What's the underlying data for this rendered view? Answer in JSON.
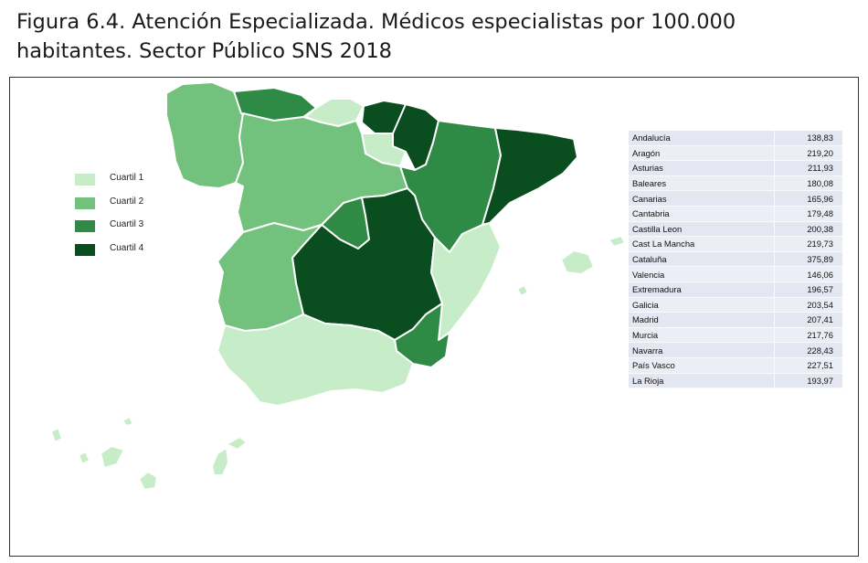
{
  "title": "Figura 6.4. Atención Especializada. Médicos especialistas por 100.000 habitantes. Sector Público SNS 2018",
  "colors": {
    "q1": "#c7ecc8",
    "q2": "#72c27d",
    "q3": "#2f8a46",
    "q4": "#0a4d1f"
  },
  "legend": [
    {
      "label": "Cuartil 1",
      "color": "#c7ecc8"
    },
    {
      "label": "Cuartil 2",
      "color": "#72c27d"
    },
    {
      "label": "Cuartil 3",
      "color": "#2f8a46"
    },
    {
      "label": "Cuartil 4",
      "color": "#0a4d1f"
    }
  ],
  "table": [
    {
      "region": "Andalucía",
      "value": "138,83"
    },
    {
      "region": "Aragón",
      "value": "219,20"
    },
    {
      "region": "Asturias",
      "value": "211,93"
    },
    {
      "region": "Baleares",
      "value": "180,08"
    },
    {
      "region": "Canarias",
      "value": "165,96"
    },
    {
      "region": "Cantabria",
      "value": "179,48"
    },
    {
      "region": "Castilla Leon",
      "value": "200,38"
    },
    {
      "region": "Cast La Mancha",
      "value": "219,73"
    },
    {
      "region": "Cataluña",
      "value": "375,89"
    },
    {
      "region": "Valencia",
      "value": "146,06"
    },
    {
      "region": "Extremadura",
      "value": "196,57"
    },
    {
      "region": "Galicia",
      "value": "203,54"
    },
    {
      "region": "Madrid",
      "value": "207,41"
    },
    {
      "region": "Murcia",
      "value": "217,76"
    },
    {
      "region": "Navarra",
      "value": "228,43"
    },
    {
      "region": "País Vasco",
      "value": "227,51"
    },
    {
      "region": "La Rioja",
      "value": "193,97"
    }
  ],
  "regions": [
    {
      "name": "Galicia",
      "quartile": 2
    },
    {
      "name": "Asturias",
      "quartile": 3
    },
    {
      "name": "Cantabria",
      "quartile": 1
    },
    {
      "name": "País Vasco",
      "quartile": 4
    },
    {
      "name": "Navarra",
      "quartile": 4
    },
    {
      "name": "La Rioja",
      "quartile": 1
    },
    {
      "name": "Castilla Leon",
      "quartile": 2
    },
    {
      "name": "Aragón",
      "quartile": 3
    },
    {
      "name": "Cataluña",
      "quartile": 4
    },
    {
      "name": "Madrid",
      "quartile": 3
    },
    {
      "name": "Cast La Mancha",
      "quartile": 4
    },
    {
      "name": "Extremadura",
      "quartile": 2
    },
    {
      "name": "Valencia",
      "quartile": 1
    },
    {
      "name": "Murcia",
      "quartile": 3
    },
    {
      "name": "Andalucía",
      "quartile": 1
    },
    {
      "name": "Baleares",
      "quartile": 1
    },
    {
      "name": "Canarias",
      "quartile": 1
    }
  ]
}
